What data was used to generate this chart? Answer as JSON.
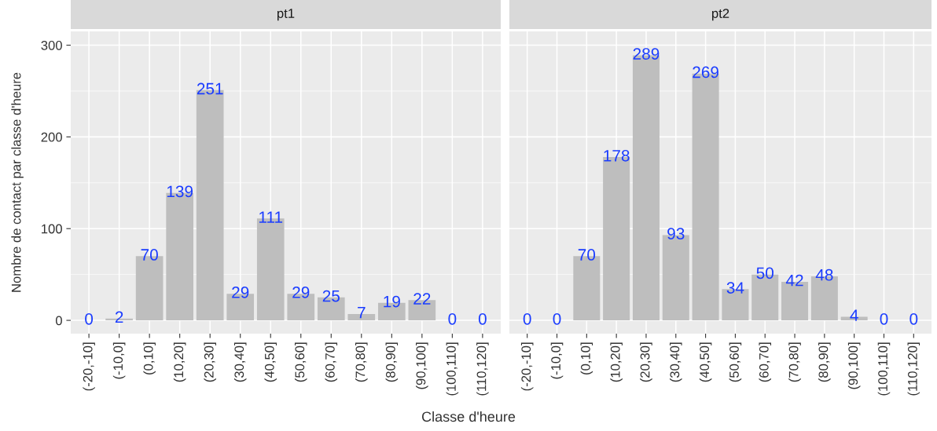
{
  "chart_data": [
    {
      "type": "bar",
      "title": "pt1",
      "xlabel": "Classe d'heure",
      "ylabel": "Nombre de contact par classe d'heure",
      "categories": [
        "(-20,-10]",
        "(-10,0]",
        "(0,10]",
        "(10,20]",
        "(20,30]",
        "(30,40]",
        "(40,50]",
        "(50,60]",
        "(60,70]",
        "(70,80]",
        "(80,90]",
        "(90,100]",
        "(100,110]",
        "(110,120]"
      ],
      "values": [
        0,
        2,
        70,
        139,
        251,
        29,
        111,
        29,
        25,
        7,
        19,
        22,
        0,
        0
      ],
      "color": "#bebebe",
      "ylim": [
        -14.5,
        315
      ],
      "yticks": [
        0,
        100,
        200,
        300
      ],
      "grid": true,
      "data_labels": true
    },
    {
      "type": "bar",
      "title": "pt2",
      "categories": [
        "(-20,-10]",
        "(-10,0]",
        "(0,10]",
        "(10,20]",
        "(20,30]",
        "(30,40]",
        "(40,50]",
        "(50,60]",
        "(60,70]",
        "(70,80]",
        "(80,90]",
        "(90,100]",
        "(100,110]",
        "(110,120]"
      ],
      "values": [
        0,
        0,
        70,
        178,
        289,
        93,
        269,
        34,
        50,
        42,
        48,
        4,
        0,
        0
      ],
      "color": "#bebebe",
      "ylim": [
        -14.5,
        315
      ],
      "yticks": [
        0,
        100,
        200,
        300
      ],
      "grid": true,
      "data_labels": true,
      "tick_labels": "x"
    }
  ]
}
